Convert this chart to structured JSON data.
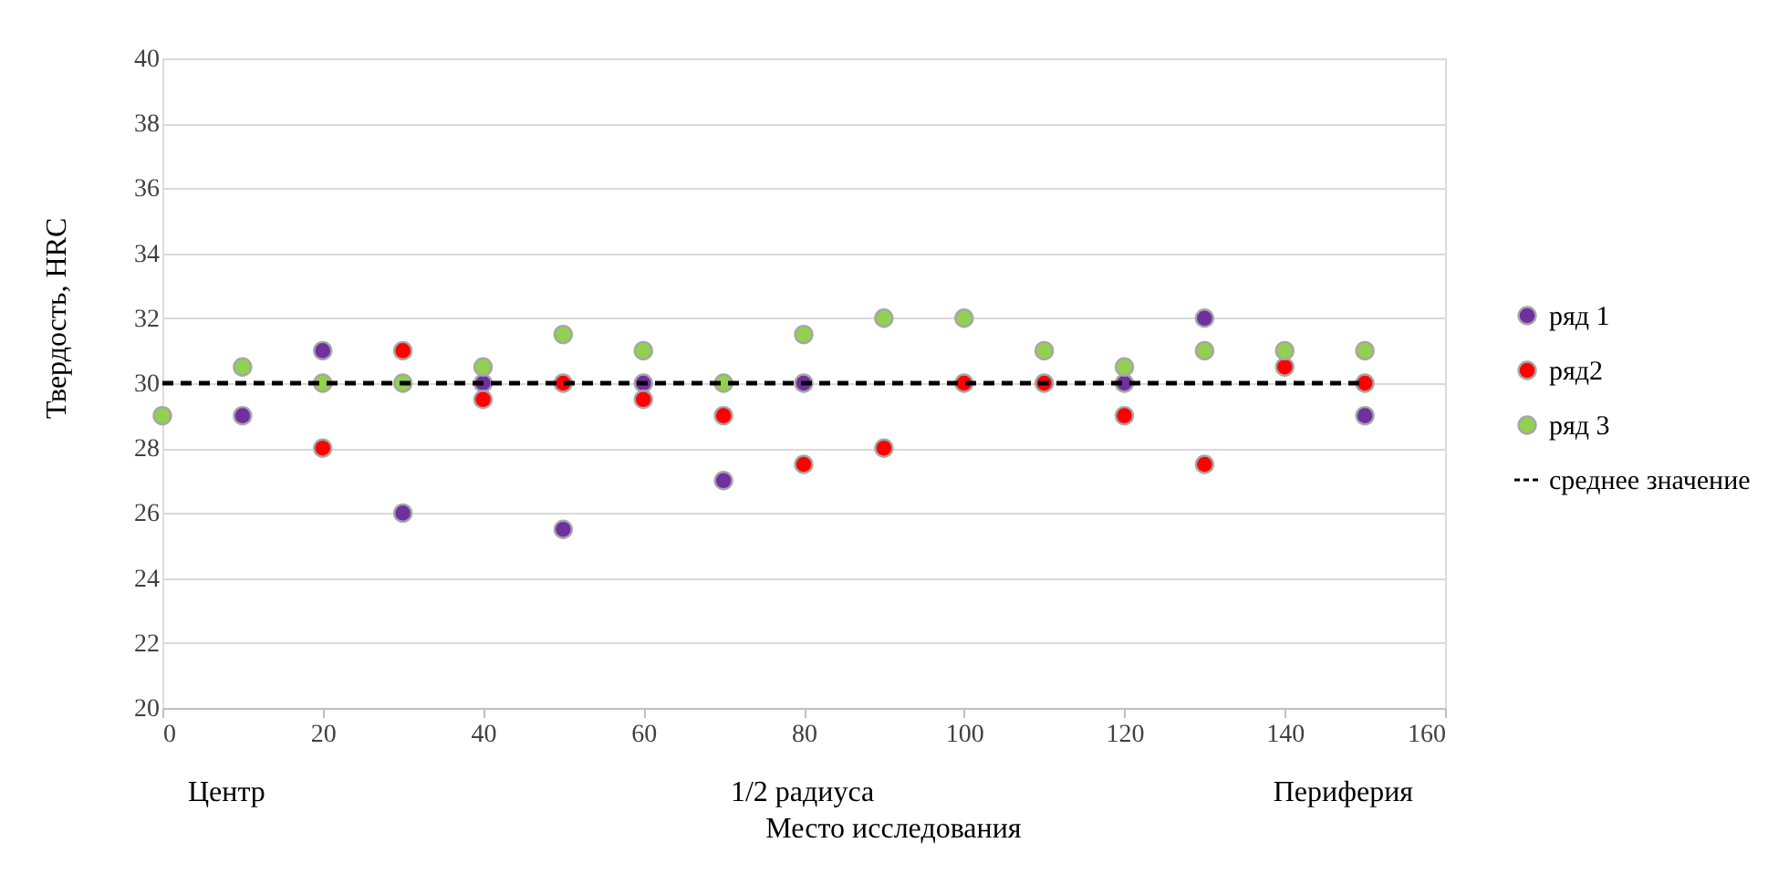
{
  "chart_data": {
    "type": "scatter",
    "x": [
      0,
      10,
      20,
      30,
      40,
      50,
      60,
      70,
      80,
      90,
      100,
      110,
      120,
      130,
      140,
      150
    ],
    "series": [
      {
        "name": "ряд 1",
        "color": "#7030a0",
        "values": [
          null,
          29,
          31,
          26,
          30,
          25.5,
          30,
          27,
          30,
          null,
          null,
          null,
          30,
          32,
          null,
          29
        ]
      },
      {
        "name": "ряд2",
        "color": "#ff0000",
        "values": [
          null,
          null,
          28,
          31,
          29.5,
          30,
          29.5,
          29,
          27.5,
          28,
          30,
          30,
          29,
          27.5,
          30.5,
          30
        ]
      },
      {
        "name": "ряд 3",
        "color": "#92d050",
        "values": [
          29,
          30.5,
          30,
          30,
          30.5,
          31.5,
          31,
          30,
          31.5,
          32,
          32,
          31,
          30.5,
          31,
          31,
          31
        ]
      },
      {
        "name": "среднее значение",
        "type": "line",
        "color": "#000000",
        "line_style": "dashed",
        "marker": "none",
        "x": [
          0,
          150
        ],
        "values": [
          30,
          30
        ]
      }
    ],
    "marker": "circle",
    "xlabel": "Место исследования",
    "ylabel": "Твердость, HRC",
    "xlim": [
      0,
      160
    ],
    "xticks": [
      0,
      20,
      40,
      60,
      80,
      100,
      120,
      140,
      160
    ],
    "ylim": [
      20,
      40
    ],
    "yticks": [
      20,
      22,
      24,
      26,
      28,
      30,
      32,
      34,
      36,
      38,
      40
    ],
    "grid": "y",
    "legend": "right",
    "annotations": [
      "Центр",
      "1/2 радиуса",
      "Периферия"
    ]
  }
}
